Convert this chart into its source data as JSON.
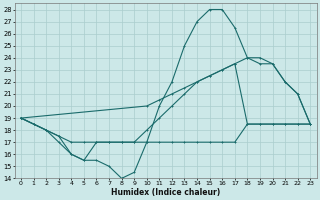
{
  "xlabel": "Humidex (Indice chaleur)",
  "bg_color": "#cce8e8",
  "grid_color": "#aacece",
  "line_color": "#1a6b6b",
  "xlim": [
    -0.5,
    23.5
  ],
  "ylim": [
    14,
    28.5
  ],
  "xticks": [
    0,
    1,
    2,
    3,
    4,
    5,
    6,
    7,
    8,
    9,
    10,
    11,
    12,
    13,
    14,
    15,
    16,
    17,
    18,
    19,
    20,
    21,
    22,
    23
  ],
  "yticks": [
    14,
    15,
    16,
    17,
    18,
    19,
    20,
    21,
    22,
    23,
    24,
    25,
    26,
    27,
    28
  ],
  "series1": [
    [
      0,
      19
    ],
    [
      1,
      18.5
    ],
    [
      2,
      18
    ],
    [
      3,
      17
    ],
    [
      4,
      16
    ],
    [
      5,
      15.5
    ],
    [
      6,
      15.5
    ],
    [
      7,
      15
    ],
    [
      8,
      14
    ],
    [
      9,
      14.5
    ],
    [
      10,
      17
    ],
    [
      11,
      20
    ],
    [
      12,
      22
    ],
    [
      13,
      25
    ],
    [
      14,
      27
    ],
    [
      15,
      28
    ],
    [
      16,
      28
    ],
    [
      17,
      26.5
    ],
    [
      18,
      24
    ],
    [
      19,
      23.5
    ],
    [
      20,
      23.5
    ],
    [
      21,
      22
    ],
    [
      22,
      21
    ],
    [
      23,
      18.5
    ]
  ],
  "series2": [
    [
      0,
      19
    ],
    [
      2,
      18
    ],
    [
      3,
      17.5
    ],
    [
      4,
      17
    ],
    [
      5,
      17
    ],
    [
      6,
      17
    ],
    [
      7,
      17
    ],
    [
      8,
      17
    ],
    [
      9,
      17
    ],
    [
      10,
      18
    ],
    [
      11,
      19
    ],
    [
      12,
      20
    ],
    [
      13,
      21
    ],
    [
      14,
      22
    ],
    [
      15,
      22.5
    ],
    [
      16,
      23
    ],
    [
      17,
      23.5
    ],
    [
      18,
      18.5
    ],
    [
      19,
      18.5
    ],
    [
      20,
      18.5
    ],
    [
      21,
      18.5
    ],
    [
      22,
      18.5
    ],
    [
      23,
      18.5
    ]
  ],
  "series3": [
    [
      0,
      19
    ],
    [
      10,
      20
    ],
    [
      11,
      20.5
    ],
    [
      12,
      21
    ],
    [
      13,
      21.5
    ],
    [
      14,
      22
    ],
    [
      15,
      22.5
    ],
    [
      16,
      23
    ],
    [
      17,
      23.5
    ],
    [
      18,
      24
    ],
    [
      19,
      24
    ],
    [
      20,
      23.5
    ],
    [
      21,
      22
    ],
    [
      22,
      21
    ],
    [
      23,
      18.5
    ]
  ],
  "series4": [
    [
      0,
      19
    ],
    [
      1,
      18.5
    ],
    [
      2,
      18
    ],
    [
      3,
      17.5
    ],
    [
      4,
      16
    ],
    [
      5,
      15.5
    ],
    [
      6,
      17
    ],
    [
      7,
      17
    ],
    [
      8,
      17
    ],
    [
      9,
      17
    ],
    [
      10,
      17
    ],
    [
      11,
      17
    ],
    [
      12,
      17
    ],
    [
      13,
      17
    ],
    [
      14,
      17
    ],
    [
      15,
      17
    ],
    [
      16,
      17
    ],
    [
      17,
      17
    ],
    [
      18,
      18.5
    ],
    [
      19,
      18.5
    ],
    [
      20,
      18.5
    ],
    [
      21,
      18.5
    ],
    [
      22,
      18.5
    ],
    [
      23,
      18.5
    ]
  ]
}
